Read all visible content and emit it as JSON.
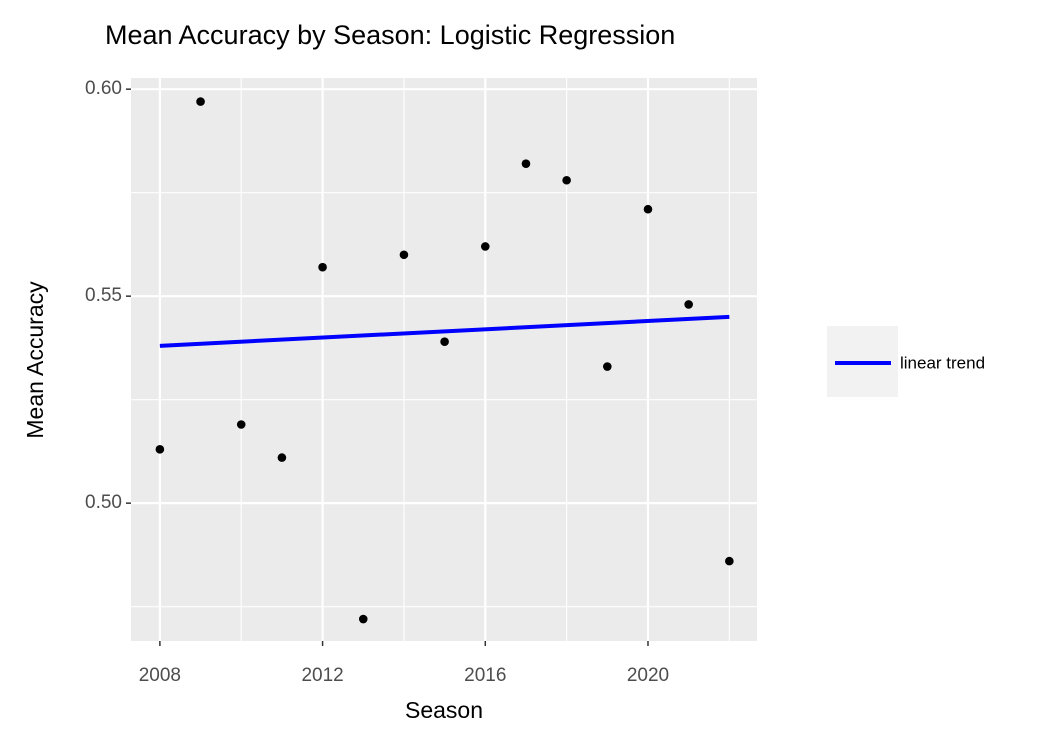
{
  "chart_data": {
    "type": "scatter",
    "title": "Mean Accuracy by Season: Logistic Regression",
    "x_label": "Season",
    "y_label": "Mean Accuracy",
    "x": [
      2008,
      2009,
      2010,
      2011,
      2012,
      2013,
      2014,
      2015,
      2016,
      2017,
      2018,
      2019,
      2020,
      2021,
      2022
    ],
    "values": [
      0.513,
      0.597,
      0.519,
      0.511,
      0.557,
      0.472,
      0.56,
      0.539,
      0.562,
      0.582,
      0.578,
      0.533,
      0.571,
      0.548,
      0.486
    ],
    "color": "#000000",
    "trend": {
      "name": "linear trend",
      "x": [
        2008,
        2022
      ],
      "values": [
        0.538,
        0.545
      ],
      "color": "#0000ff"
    },
    "xlim": [
      2007.29,
      2022.68
    ],
    "ylim": [
      0.4667,
      0.6027
    ],
    "xticks": [
      2008,
      2012,
      2016,
      2020
    ],
    "yticks": [
      {
        "value": 0.5,
        "label": "0.50"
      },
      {
        "value": 0.55,
        "label": "0.55"
      },
      {
        "value": 0.6,
        "label": "0.60"
      }
    ],
    "x_minor_grid": [
      2010,
      2014,
      2018,
      2022
    ],
    "y_minor_grid": [
      0.475,
      0.525,
      0.575
    ],
    "grid": true,
    "legend_position": "right"
  }
}
